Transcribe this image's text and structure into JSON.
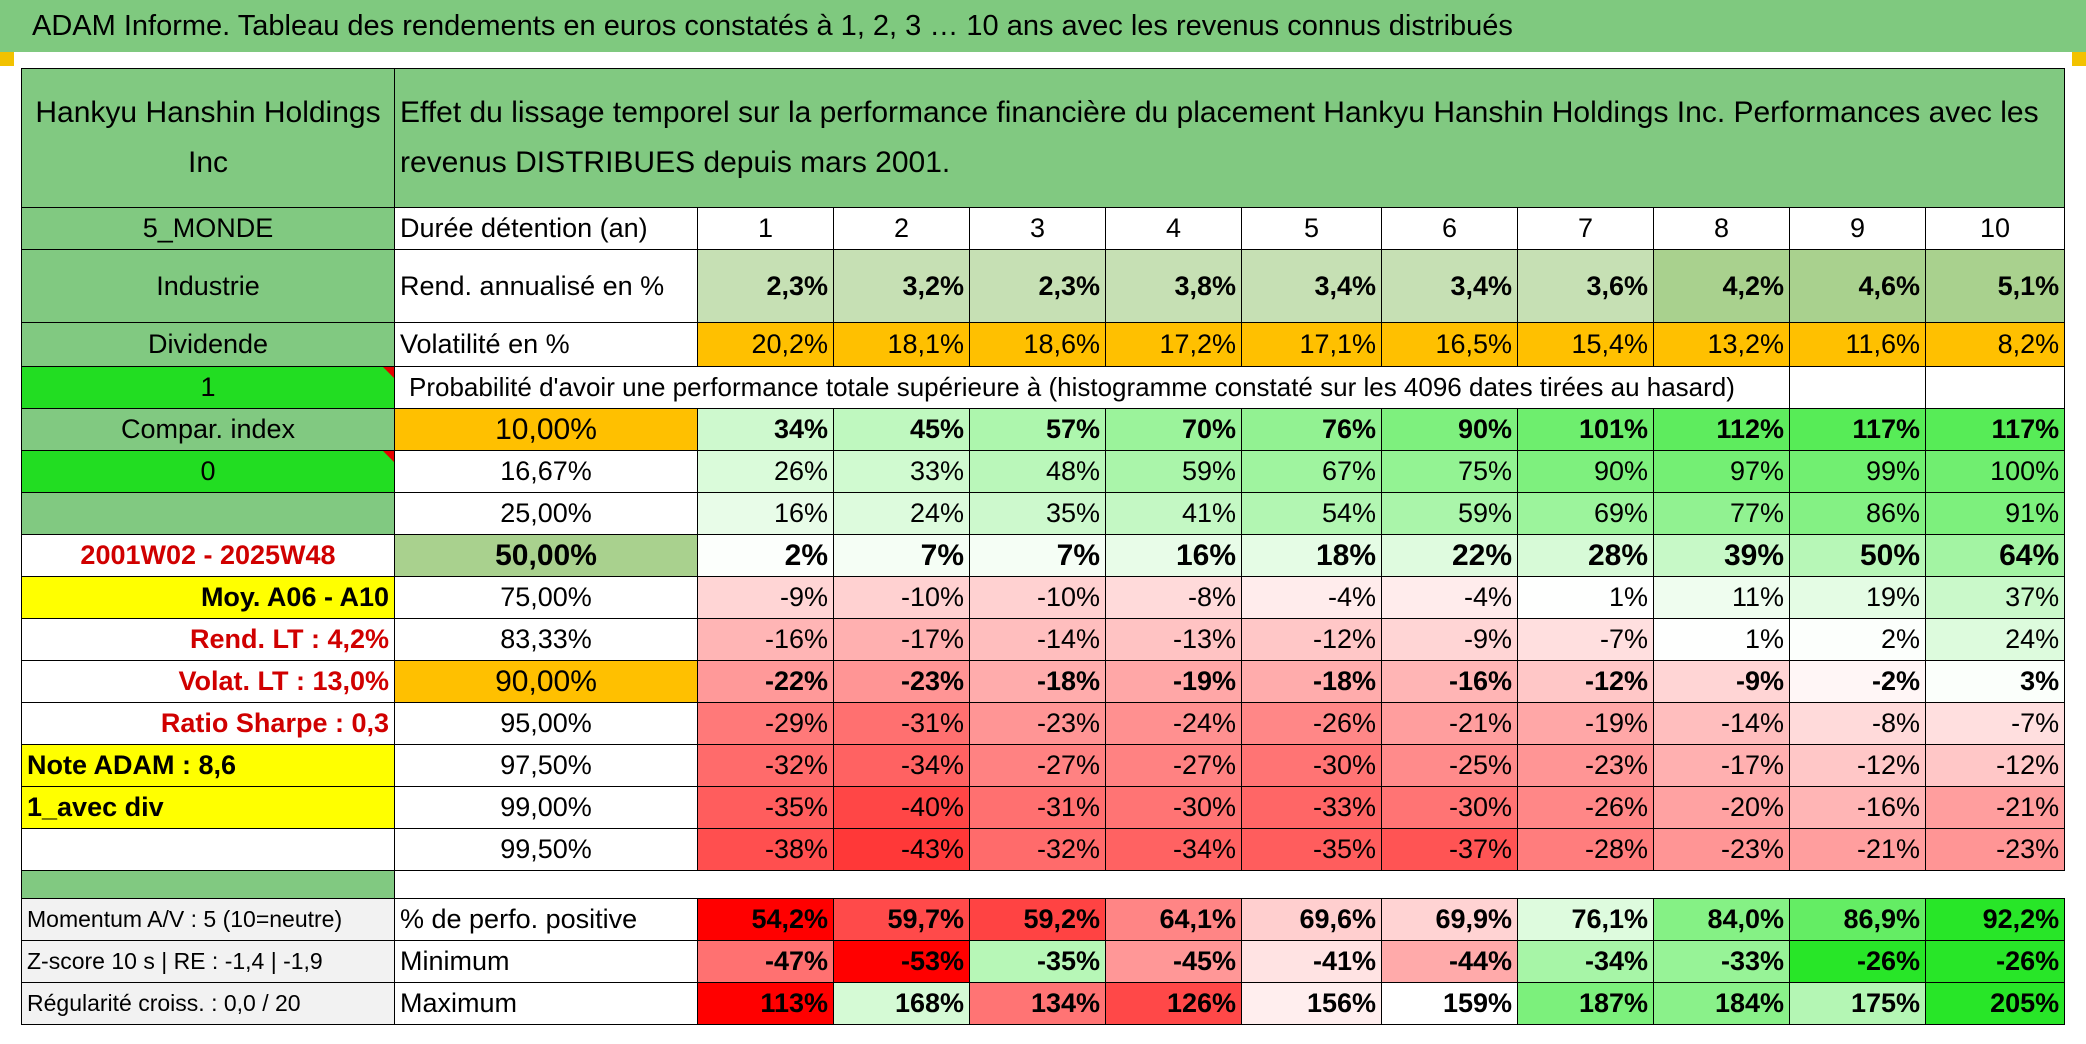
{
  "title": "ADAM Informe. Tableau des rendements en euros constatés à 1, 2, 3 … 10 ans avec les revenus connus distribués",
  "header": {
    "company": "Hankyu Hanshin Holdings Inc",
    "description": "Effet du lissage temporel sur la performance financière du placement Hankyu Hanshin Holdings Inc. Performances avec les revenus DISTRIBUES depuis mars 2001."
  },
  "left": {
    "zone": "5_MONDE",
    "sector": "Industrie",
    "dividend": "Dividende",
    "flag1": "1",
    "compar_index": "Compar. index",
    "flag0": "0",
    "period": "2001W02 - 2025W48",
    "moy": "Moy. A06 - A10",
    "rend_lt": "Rend. LT :   4,2%",
    "volat_lt": "Volat. LT :   13,0%",
    "sharpe": "Ratio Sharpe :    0,3",
    "note": "Note ADAM : 8,6",
    "avec_div": "1_avec div"
  },
  "rows": {
    "duration": {
      "label": "Durée détention (an)",
      "values": [
        "1",
        "2",
        "3",
        "4",
        "5",
        "6",
        "7",
        "8",
        "9",
        "10"
      ]
    },
    "rend": {
      "label": "Rend. annualisé en %",
      "values": [
        "2,3%",
        "3,2%",
        "2,3%",
        "3,8%",
        "3,4%",
        "3,4%",
        "3,6%",
        "4,2%",
        "4,6%",
        "5,1%"
      ]
    },
    "volat": {
      "label": "Volatilité en %",
      "values": [
        "20,2%",
        "18,1%",
        "18,6%",
        "17,2%",
        "17,1%",
        "16,5%",
        "15,4%",
        "13,2%",
        "11,6%",
        "8,2%"
      ]
    },
    "prob_title": "Probabilité d'avoir une performance totale supérieure à (histogramme constaté sur les 4096 dates tirées au hasard)"
  },
  "quantiles": [
    {
      "label": "10,00%",
      "values": [
        "34%",
        "45%",
        "57%",
        "70%",
        "76%",
        "90%",
        "101%",
        "112%",
        "117%",
        "117%"
      ]
    },
    {
      "label": "16,67%",
      "values": [
        "26%",
        "33%",
        "48%",
        "59%",
        "67%",
        "75%",
        "90%",
        "97%",
        "99%",
        "100%"
      ]
    },
    {
      "label": "25,00%",
      "values": [
        "16%",
        "24%",
        "35%",
        "41%",
        "54%",
        "59%",
        "69%",
        "77%",
        "86%",
        "91%"
      ]
    },
    {
      "label": "50,00%",
      "values": [
        "2%",
        "7%",
        "7%",
        "16%",
        "18%",
        "22%",
        "28%",
        "39%",
        "50%",
        "64%"
      ]
    },
    {
      "label": "75,00%",
      "values": [
        "-9%",
        "-10%",
        "-10%",
        "-8%",
        "-4%",
        "-4%",
        "1%",
        "11%",
        "19%",
        "37%"
      ]
    },
    {
      "label": "83,33%",
      "values": [
        "-16%",
        "-17%",
        "-14%",
        "-13%",
        "-12%",
        "-9%",
        "-7%",
        "1%",
        "2%",
        "24%"
      ]
    },
    {
      "label": "90,00%",
      "values": [
        "-22%",
        "-23%",
        "-18%",
        "-19%",
        "-18%",
        "-16%",
        "-12%",
        "-9%",
        "-2%",
        "3%"
      ]
    },
    {
      "label": "95,00%",
      "values": [
        "-29%",
        "-31%",
        "-23%",
        "-24%",
        "-26%",
        "-21%",
        "-19%",
        "-14%",
        "-8%",
        "-7%"
      ]
    },
    {
      "label": "97,50%",
      "values": [
        "-32%",
        "-34%",
        "-27%",
        "-27%",
        "-30%",
        "-25%",
        "-23%",
        "-17%",
        "-12%",
        "-12%"
      ]
    },
    {
      "label": "99,00%",
      "values": [
        "-35%",
        "-40%",
        "-31%",
        "-30%",
        "-33%",
        "-30%",
        "-26%",
        "-20%",
        "-16%",
        "-21%"
      ]
    },
    {
      "label": "99,50%",
      "values": [
        "-38%",
        "-43%",
        "-32%",
        "-34%",
        "-35%",
        "-37%",
        "-28%",
        "-23%",
        "-21%",
        "-23%"
      ]
    }
  ],
  "bottom": [
    {
      "left": "Momentum A/V : 5 (10=neutre)",
      "label": "% de perfo. positive",
      "values": [
        "54,2%",
        "59,7%",
        "59,2%",
        "64,1%",
        "69,6%",
        "69,9%",
        "76,1%",
        "84,0%",
        "86,9%",
        "92,2%"
      ]
    },
    {
      "left": "Z-score 10 s | RE : -1,4 | -1,9",
      "label": "Minimum",
      "values": [
        "-47%",
        "-53%",
        "-35%",
        "-45%",
        "-41%",
        "-44%",
        "-34%",
        "-33%",
        "-26%",
        "-26%"
      ]
    },
    {
      "left": "Régularité croiss. : 0,0 / 20",
      "label": "Maximum",
      "values": [
        "113%",
        "168%",
        "134%",
        "126%",
        "156%",
        "159%",
        "187%",
        "184%",
        "175%",
        "205%"
      ]
    }
  ],
  "colors": {
    "title_green": "#7fc97f",
    "header_green": "#81c981",
    "bright_green": "#22dd22",
    "yellow": "#ffff00",
    "orange": "#ffc000",
    "red_text": "#d00000"
  }
}
